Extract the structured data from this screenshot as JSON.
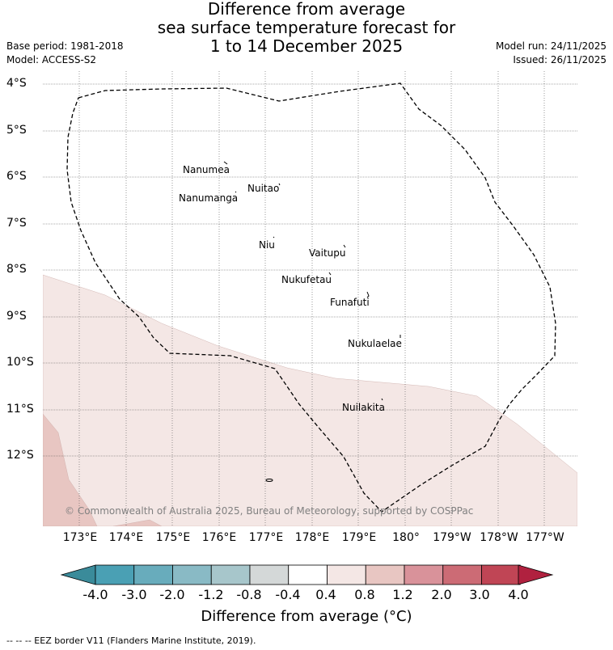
{
  "title": {
    "line1": "Difference from average",
    "line2": "sea surface temperature forecast for",
    "line3": "1 to 14 December 2025"
  },
  "meta": {
    "base_period": "Base period: 1981-2018",
    "model": "Model: ACCESS-S2",
    "model_run": "Model run: 24/11/2025",
    "issued": "Issued: 26/11/2025"
  },
  "axes": {
    "lat_labels": [
      "4°S",
      "5°S",
      "6°S",
      "7°S",
      "8°S",
      "9°S",
      "10°S",
      "11°S",
      "12°S"
    ],
    "lon_labels": [
      "173°E",
      "174°E",
      "175°E",
      "176°E",
      "177°E",
      "178°E",
      "179°E",
      "180°",
      "179°W",
      "178°W",
      "177°W"
    ]
  },
  "islands": [
    "Nanumea",
    "Nuitao",
    "Nanumanga",
    "Niu",
    "Vaitupu",
    "Nukufetau",
    "Funafuti",
    "Nukulaelae",
    "Nuilakita"
  ],
  "copyright": "© Commonwealth of Australia 2025, Bureau of Meteorology, supported by COSPPac",
  "colorbar": {
    "labels": [
      "-4.0",
      "-3.0",
      "-2.0",
      "-1.2",
      "-0.8",
      "-0.4",
      "0.4",
      "0.8",
      "1.2",
      "2.0",
      "3.0",
      "4.0"
    ],
    "colors": [
      "#3a8b9a",
      "#4aa0b4",
      "#68acbc",
      "#89bac5",
      "#a7c6cb",
      "#d4d8d8",
      "#ffffff",
      "#f4e7e5",
      "#e8c6c2",
      "#d9929a",
      "#cc6b75",
      "#c04555",
      "#b0213f"
    ],
    "title": "Difference from average (°C)"
  },
  "footer": "--  --  -- EEZ border V11 (Flanders Marine Institute, 2019)."
}
